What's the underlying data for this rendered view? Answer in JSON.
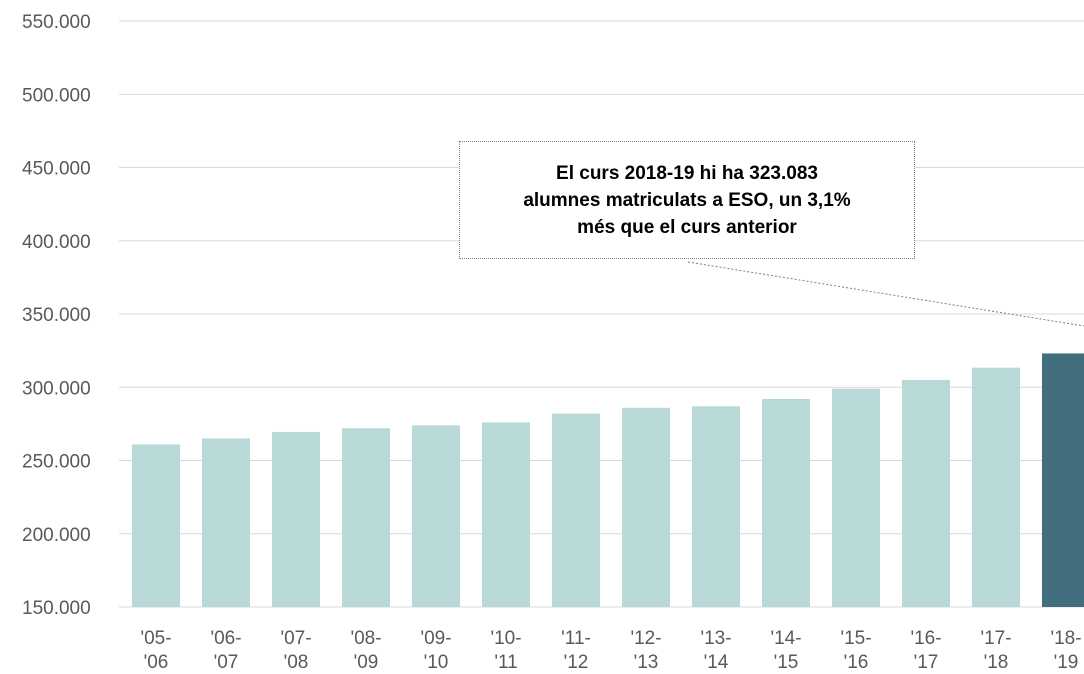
{
  "chart_data": {
    "type": "bar",
    "categories": [
      "'05-\n'06",
      "'06-\n'07",
      "'07-\n'08",
      "'08-\n'09",
      "'09-\n'10",
      "'10-\n'11",
      "'11-\n'12",
      "'12-\n'13",
      "'13-\n'14",
      "'14-\n'15",
      "'15-\n'16",
      "'16-\n'17",
      "'17-\n'18",
      "'18-\n'19"
    ],
    "values": [
      261000,
      265000,
      269500,
      272000,
      274000,
      276000,
      282000,
      286000,
      287000,
      292000,
      299000,
      305000,
      313368,
      323083
    ],
    "colors": [
      "#b9d9d9",
      "#b9d9d9",
      "#b9d9d9",
      "#b9d9d9",
      "#b9d9d9",
      "#b9d9d9",
      "#b9d9d9",
      "#b9d9d9",
      "#b9d9d9",
      "#b9d9d9",
      "#b9d9d9",
      "#b9d9d9",
      "#b9d9d9",
      "#426e7e"
    ],
    "ylim": [
      150000,
      550000
    ],
    "yticks": [
      {
        "value": 150000,
        "label": "150.000"
      },
      {
        "value": 200000,
        "label": "200.000"
      },
      {
        "value": 250000,
        "label": "250.000"
      },
      {
        "value": 300000,
        "label": "300.000"
      },
      {
        "value": 350000,
        "label": "350.000"
      },
      {
        "value": 400000,
        "label": "400.000"
      },
      {
        "value": 450000,
        "label": "450.000"
      },
      {
        "value": 500000,
        "label": "500.000"
      },
      {
        "value": 550000,
        "label": "550.000"
      }
    ],
    "grid": true,
    "annotation": "El curs 2018-19 hi ha 323.083\nalumnes matriculats a ESO, un 3,1%\nmés que el curs anterior"
  }
}
